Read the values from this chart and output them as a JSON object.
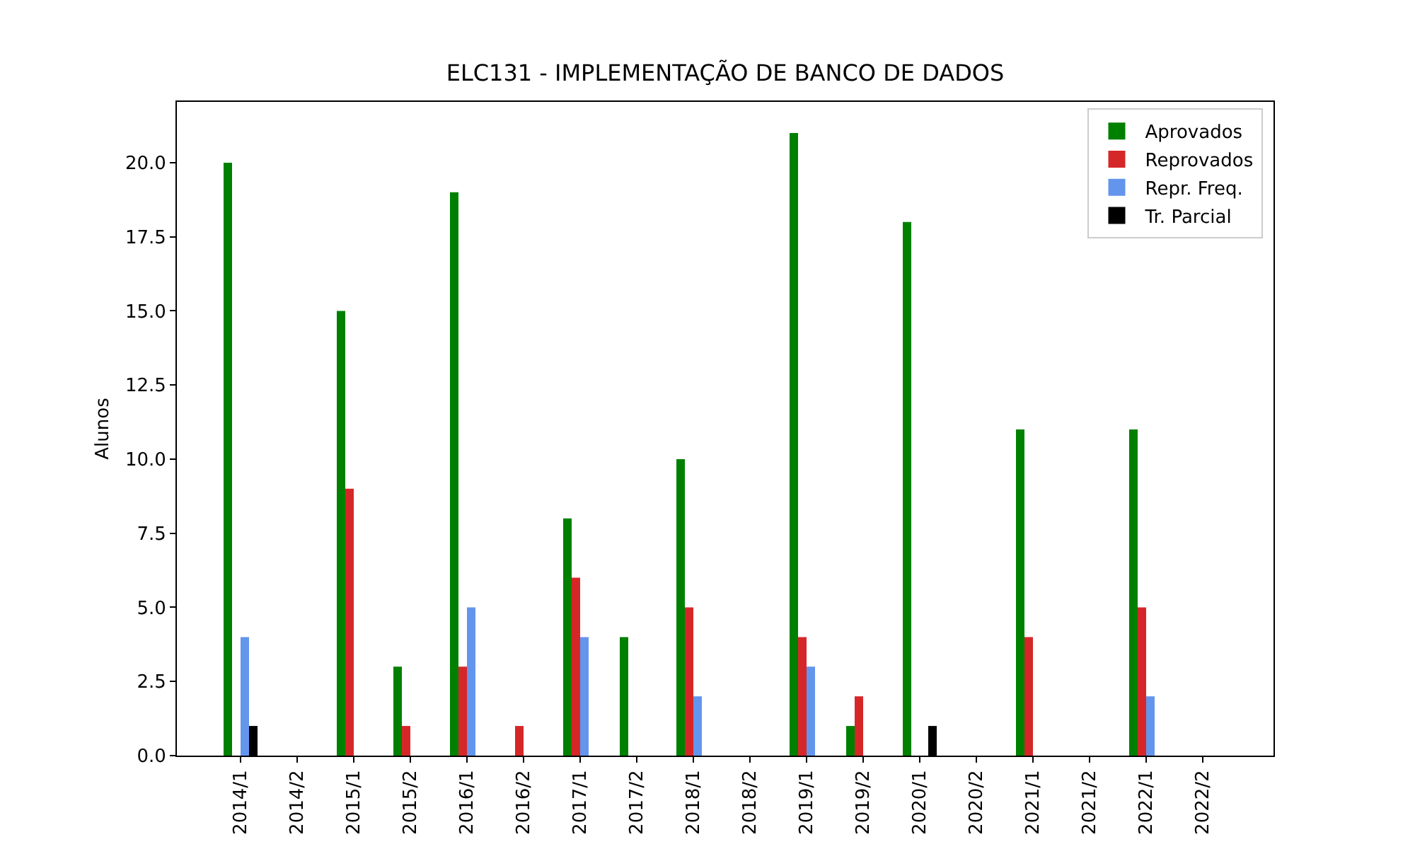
{
  "chart_data": {
    "type": "bar",
    "title": "ELC131 - IMPLEMENTAÇÃO DE BANCO DE DADOS",
    "ylabel": "Alunos",
    "categories": [
      "2014/1",
      "2014/2",
      "2015/1",
      "2015/2",
      "2016/1",
      "2016/2",
      "2017/1",
      "2017/2",
      "2018/1",
      "2018/2",
      "2019/1",
      "2019/2",
      "2020/1",
      "2020/2",
      "2021/1",
      "2021/2",
      "2022/1",
      "2022/2"
    ],
    "series": [
      {
        "name": "Aprovados",
        "color": "#008000",
        "values": [
          20,
          0,
          15,
          3,
          19,
          0,
          8,
          4,
          10,
          0,
          21,
          1,
          18,
          0,
          11,
          0,
          11,
          0
        ]
      },
      {
        "name": "Reprovados",
        "color": "#d62728",
        "values": [
          0,
          0,
          9,
          1,
          3,
          1,
          6,
          0,
          5,
          0,
          4,
          2,
          0,
          0,
          4,
          0,
          5,
          0
        ]
      },
      {
        "name": "Repr. Freq.",
        "color": "#6495ed",
        "values": [
          4,
          0,
          0,
          0,
          5,
          0,
          4,
          0,
          2,
          0,
          3,
          0,
          0,
          0,
          0,
          0,
          2,
          0
        ]
      },
      {
        "name": "Tr. Parcial",
        "color": "#000000",
        "values": [
          1,
          0,
          0,
          0,
          0,
          0,
          0,
          0,
          0,
          0,
          0,
          0,
          1,
          0,
          0,
          0,
          0,
          0
        ]
      }
    ],
    "ylim": [
      0,
      22.05
    ],
    "yticks": [
      {
        "value": 0,
        "label": "0.0"
      },
      {
        "value": 2.5,
        "label": "2.5"
      },
      {
        "value": 5,
        "label": "5.0"
      },
      {
        "value": 7.5,
        "label": "7.5"
      },
      {
        "value": 10,
        "label": "10.0"
      },
      {
        "value": 12.5,
        "label": "12.5"
      },
      {
        "value": 15,
        "label": "15.0"
      },
      {
        "value": 17.5,
        "label": "17.5"
      },
      {
        "value": 20,
        "label": "20.0"
      }
    ],
    "grid": false,
    "legend": "top right"
  }
}
